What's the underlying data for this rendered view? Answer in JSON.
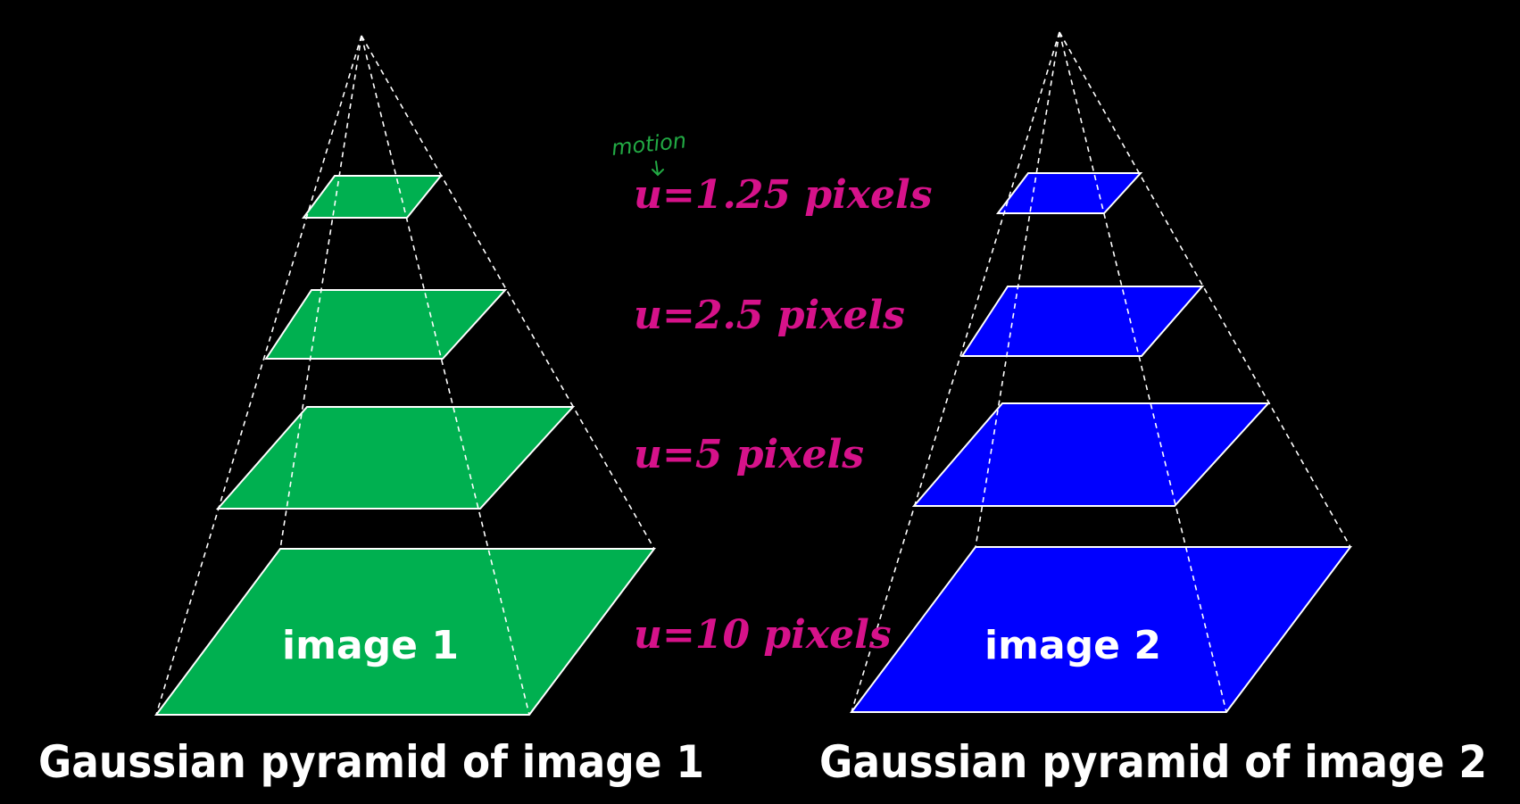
{
  "colors": {
    "background": "#000000",
    "pyramid1_fill": "#00b050",
    "pyramid2_fill": "#0000ff",
    "outline": "#ffffff",
    "motion_text": "#d6128a",
    "annotation": "#22aa44"
  },
  "pyramid1": {
    "base_label": "image 1",
    "caption": "Gaussian pyramid of image 1"
  },
  "pyramid2": {
    "base_label": "image 2",
    "caption": "Gaussian pyramid of image 2"
  },
  "motion_labels": [
    "u=1.25 pixels",
    "u=2.5 pixels",
    "u=5 pixels",
    "u=10 pixels"
  ],
  "annotation": {
    "text": "motion"
  }
}
